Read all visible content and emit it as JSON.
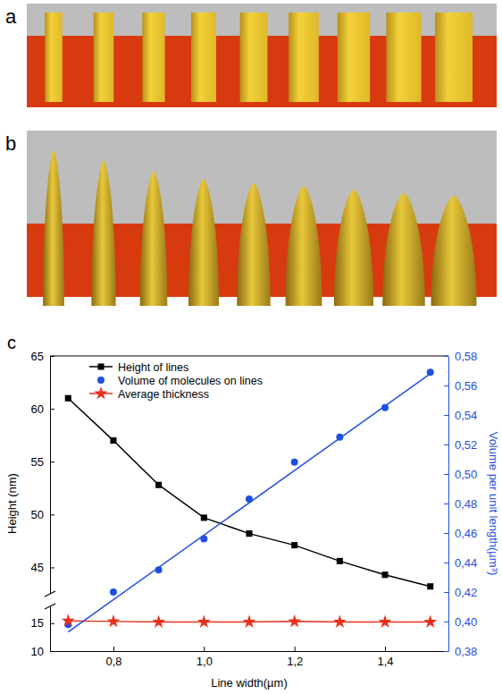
{
  "chart_data": {
    "type": "line",
    "panel_labels": [
      "a",
      "b",
      "c"
    ],
    "x_label": "Line width(µm)",
    "y_label": "Height (nm)",
    "y2_label": "Volume per unit length(µm³)",
    "x": [
      0.7,
      0.8,
      0.9,
      1.0,
      1.1,
      1.2,
      1.3,
      1.4,
      1.5
    ],
    "xlim": [
      0.66,
      1.54
    ],
    "xticks": [
      {
        "value": 0.8,
        "label": "0,8"
      },
      {
        "value": 1.0,
        "label": "1,0"
      },
      {
        "value": 1.2,
        "label": "1,2"
      },
      {
        "value": 1.4,
        "label": "1,4"
      }
    ],
    "ylim": [
      10,
      65
    ],
    "ybreak": [
      18,
      42.5
    ],
    "yticks": [
      10,
      15,
      45,
      50,
      55,
      60,
      65
    ],
    "y2lim": [
      0.38,
      0.58
    ],
    "y2ticks": [
      {
        "value": 0.38,
        "label": "0,38"
      },
      {
        "value": 0.4,
        "label": "0,40"
      },
      {
        "value": 0.42,
        "label": "0,42"
      },
      {
        "value": 0.44,
        "label": "0,44"
      },
      {
        "value": 0.46,
        "label": "0,46"
      },
      {
        "value": 0.48,
        "label": "0,48"
      },
      {
        "value": 0.5,
        "label": "0,50"
      },
      {
        "value": 0.52,
        "label": "0,52"
      },
      {
        "value": 0.54,
        "label": "0,54"
      },
      {
        "value": 0.56,
        "label": "0,56"
      },
      {
        "value": 0.58,
        "label": "0,58"
      }
    ],
    "legend": "upper left",
    "series": [
      {
        "name": "Height of lines",
        "type": "line",
        "color": "#000000",
        "marker": "square",
        "line_style": "solid",
        "values": [
          61.0,
          57.0,
          52.8,
          49.7,
          48.2,
          47.1,
          45.6,
          44.3,
          43.2
        ]
      },
      {
        "name": "Volume of molecules on lines",
        "type": "scatter",
        "color": "#1f4fe0",
        "marker": "circle",
        "axis": "y2",
        "values": [
          0.398,
          0.42,
          0.435,
          0.456,
          0.483,
          0.508,
          0.525,
          0.545,
          0.569
        ]
      },
      {
        "name": "Average thickness",
        "type": "line",
        "color": "#e8301c",
        "marker": "star",
        "line_style": "solid",
        "values": [
          15.4,
          15.3,
          15.2,
          15.2,
          15.2,
          15.3,
          15.2,
          15.2,
          15.2
        ]
      },
      {
        "type": "line",
        "color": "#1f4fe0",
        "line_style": "solid",
        "axis": "y2",
        "x": [
          0.7,
          1.5
        ],
        "values": [
          0.393,
          0.568
        ]
      }
    ]
  }
}
